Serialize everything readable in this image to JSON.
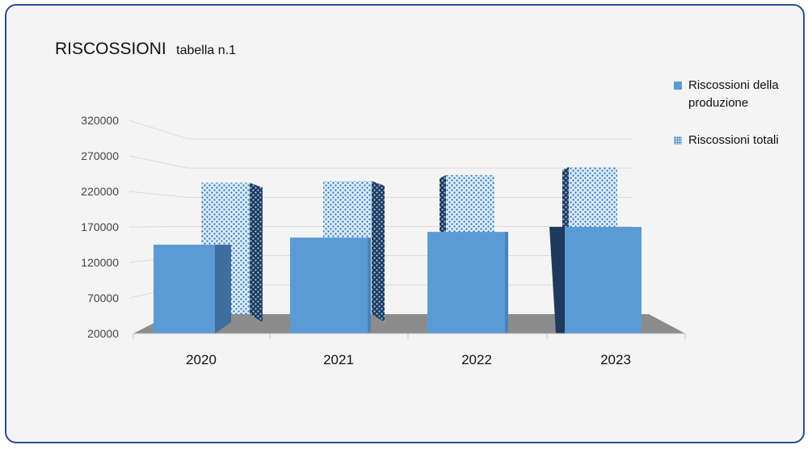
{
  "chart_data": {
    "type": "bar",
    "title": "RISCOSSIONI",
    "subtitle": "tabella n.1",
    "categories": [
      "2020",
      "2021",
      "2022",
      "2023"
    ],
    "series": [
      {
        "name": "Riscossioni della produzione",
        "values": [
          145000,
          155000,
          163000,
          170000
        ],
        "color": "#5b9bd5",
        "side_color": "#3e6e9e"
      },
      {
        "name": "Riscossioni totali",
        "values": [
          245000,
          248000,
          258000,
          272000
        ],
        "color": "#cfe4f7",
        "pattern_color": "#2f6fae"
      }
    ],
    "y_ticks": [
      "320000",
      "270000",
      "220000",
      "170000",
      "120000",
      "70000",
      "20000"
    ],
    "ylim": [
      20000,
      320000
    ],
    "legend_position": "top-right",
    "grid": true
  }
}
